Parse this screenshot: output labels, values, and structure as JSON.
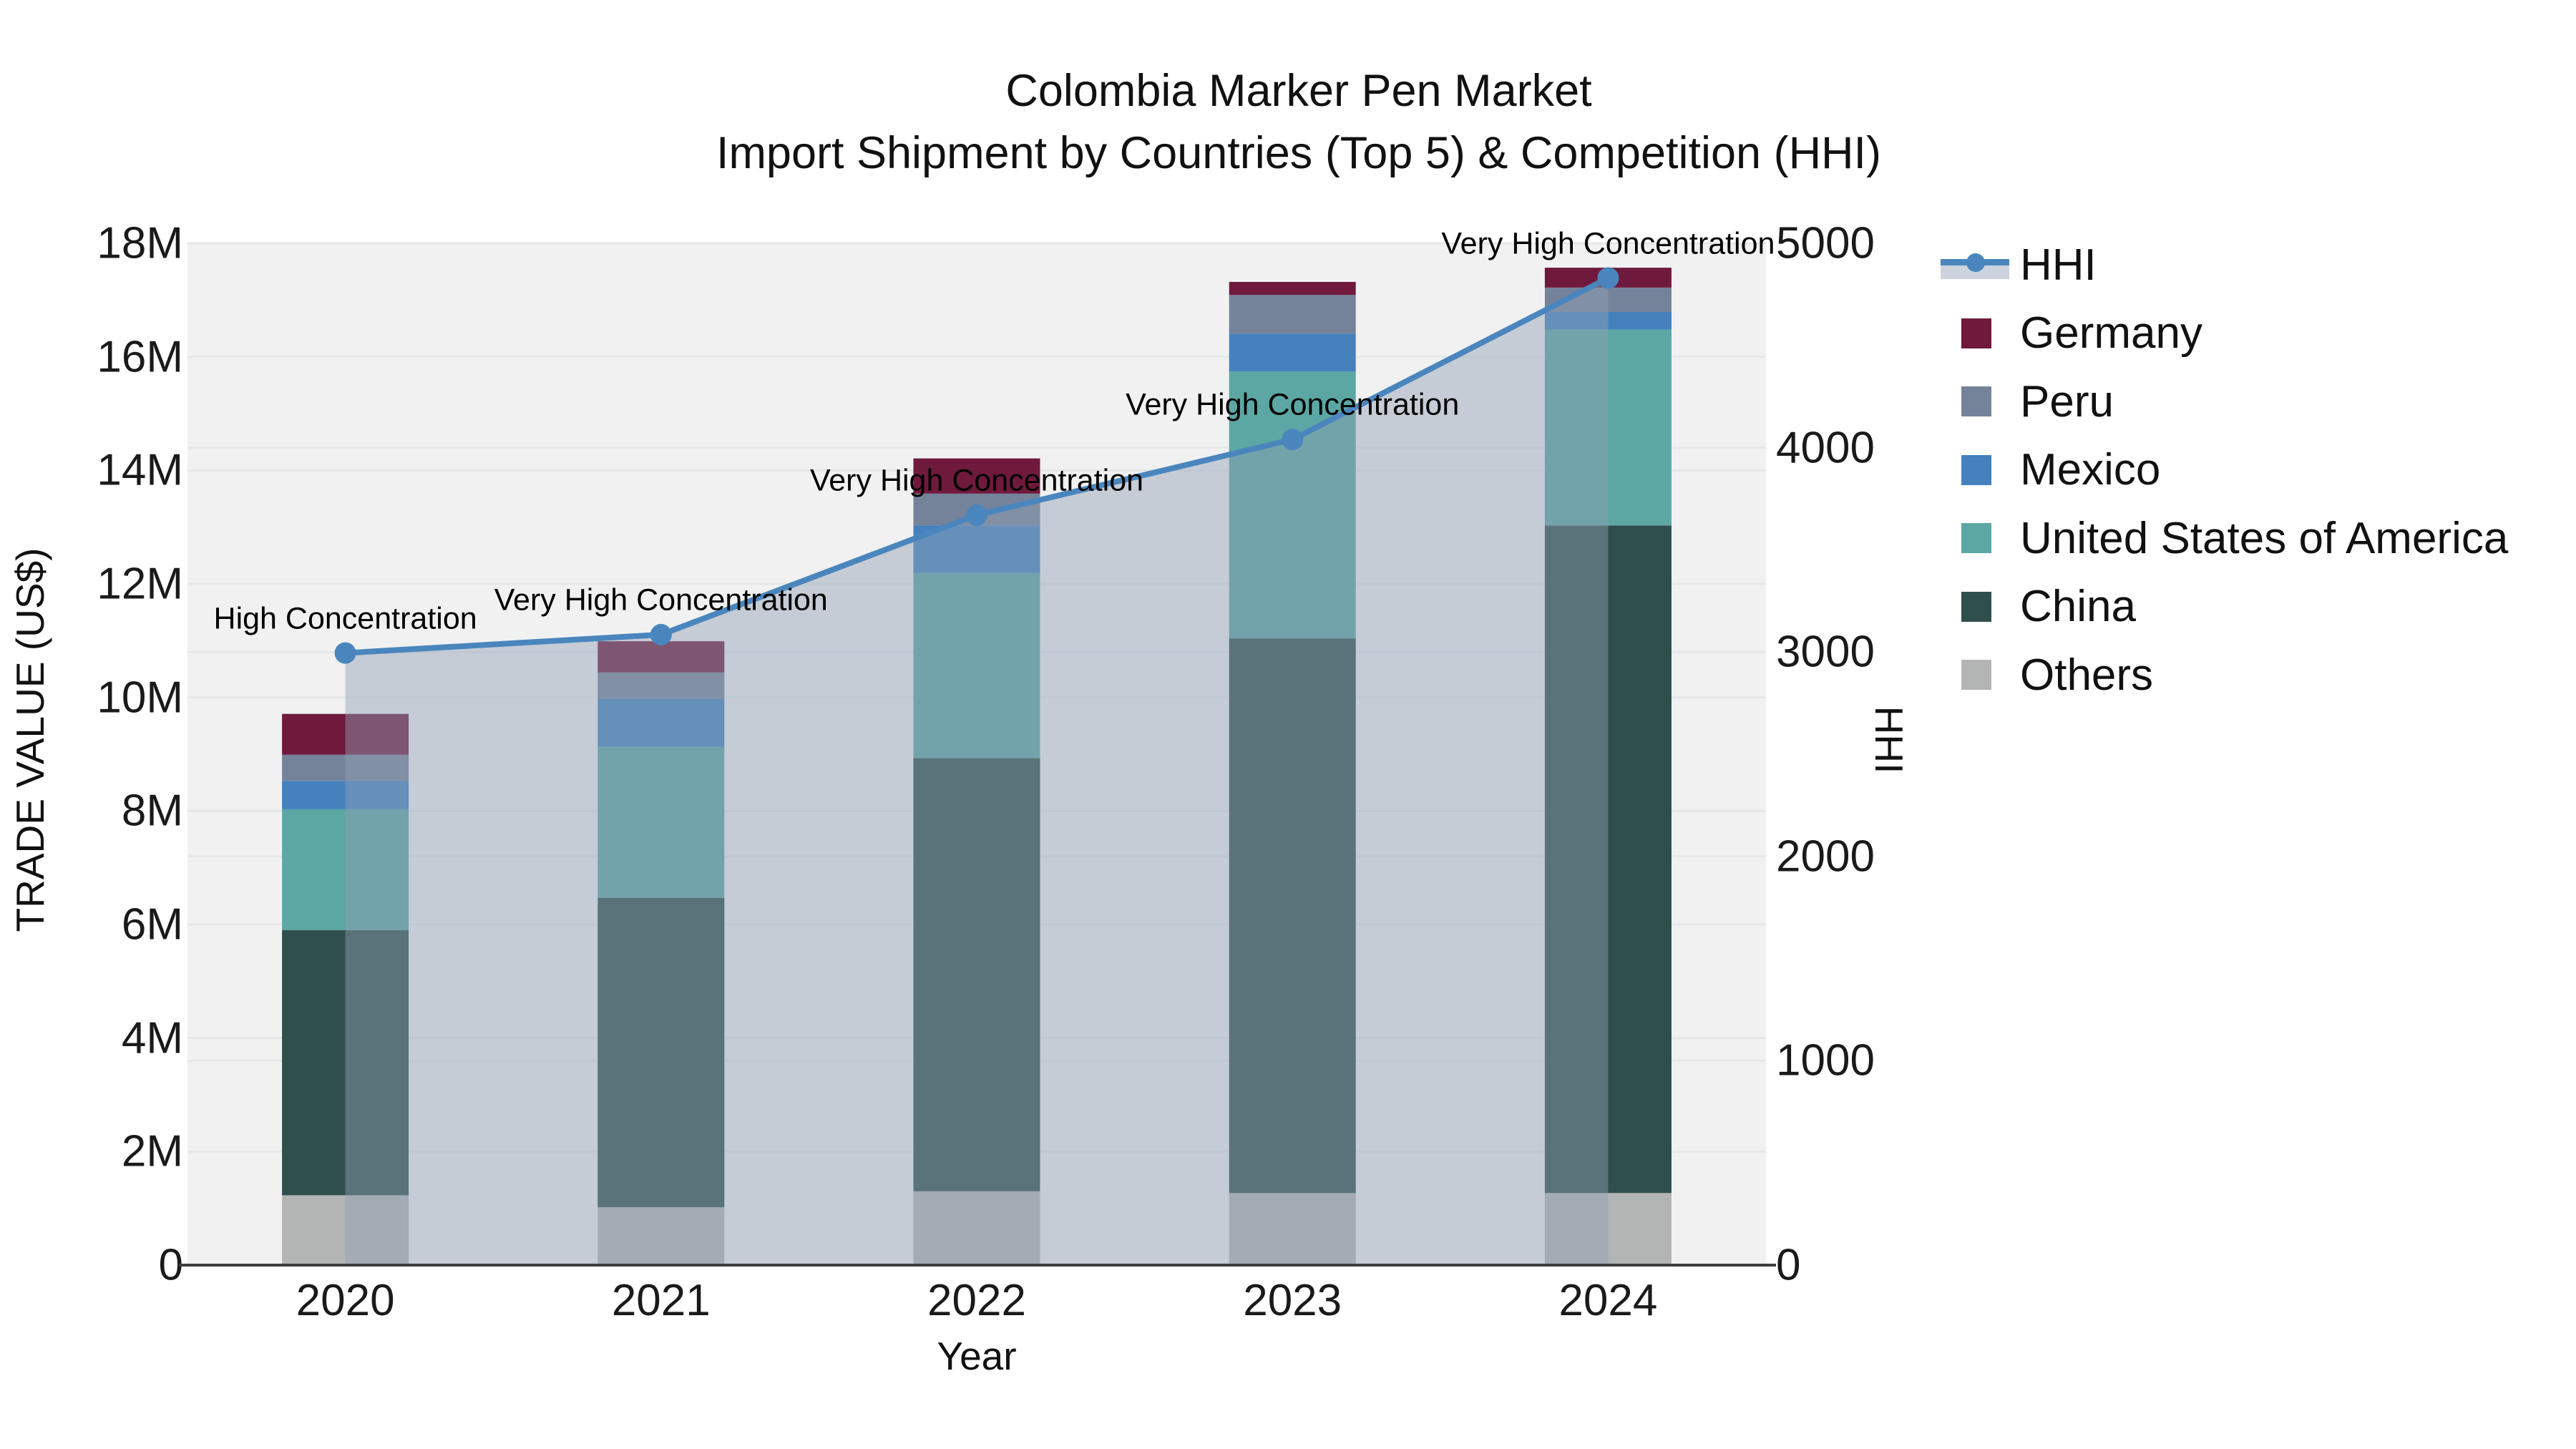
{
  "title": {
    "line1": "Colombia Marker Pen Market",
    "line2": "Import Shipment by Countries (Top 5) & Competition (HHI)"
  },
  "axes": {
    "x_title": "Year",
    "y_left_title": "TRADE VALUE (US$)",
    "y_right_title": "HHI",
    "x_ticks": [
      "2020",
      "2021",
      "2022",
      "2023",
      "2024"
    ],
    "y_left_ticks": [
      "0",
      "2M",
      "4M",
      "6M",
      "8M",
      "10M",
      "12M",
      "14M",
      "16M",
      "18M"
    ],
    "y_right_ticks": [
      "0",
      "1000",
      "2000",
      "3000",
      "4000",
      "5000"
    ]
  },
  "colors": {
    "hhi_line": "#4a86bd",
    "hhi_area": "rgba(145,159,180,0.45)",
    "germany": "#6f1a3c",
    "peru": "#75839a",
    "mexico": "#4481bd",
    "usa": "#5ca7a3",
    "china": "#2f4f4c",
    "others": "#b2b5b4",
    "plot_bg": "#f1f1f2",
    "grid": "#e6e7e9",
    "axis_line": "#3d3d3d"
  },
  "legend": [
    {
      "label": "HHI",
      "type": "line",
      "color": "#4a86bd"
    },
    {
      "label": "Germany",
      "type": "patch",
      "color": "#6f1a3c"
    },
    {
      "label": "Peru",
      "type": "patch",
      "color": "#75839a"
    },
    {
      "label": "Mexico",
      "type": "patch",
      "color": "#4481bd"
    },
    {
      "label": "United States of America",
      "type": "patch",
      "color": "#5ca7a3"
    },
    {
      "label": "China",
      "type": "patch",
      "color": "#2f4f4c"
    },
    {
      "label": "Others",
      "type": "patch",
      "color": "#b2b5b4"
    }
  ],
  "chart_data": [
    {
      "type": "bar",
      "stacked": true,
      "title": "Import shipment trade value by country (stacked, bottom to top)",
      "categories": [
        "2020",
        "2021",
        "2022",
        "2023",
        "2024"
      ],
      "xlabel": "Year",
      "ylabel": "TRADE VALUE (US$)",
      "ylim": [
        0,
        18000000
      ],
      "grid": true,
      "series": [
        {
          "name": "Others",
          "color": "#b2b5b4",
          "values": [
            1230000,
            1020000,
            1300000,
            1270000,
            1270000
          ]
        },
        {
          "name": "China",
          "color": "#2f4f4c",
          "values": [
            4670000,
            5450000,
            7630000,
            9770000,
            11760000
          ]
        },
        {
          "name": "United States of America",
          "color": "#5ca7a3",
          "values": [
            2130000,
            2660000,
            3260000,
            4700000,
            3450000
          ]
        },
        {
          "name": "Mexico",
          "color": "#4481bd",
          "values": [
            500000,
            850000,
            840000,
            670000,
            310000
          ]
        },
        {
          "name": "Peru",
          "color": "#75839a",
          "values": [
            460000,
            460000,
            560000,
            680000,
            430000
          ]
        },
        {
          "name": "Germany",
          "color": "#6f1a3c",
          "values": [
            720000,
            550000,
            620000,
            230000,
            350000
          ]
        }
      ],
      "totals": [
        9710000,
        10990000,
        14210000,
        17320000,
        17570000
      ]
    },
    {
      "type": "line",
      "name": "HHI",
      "axis": "right",
      "x": [
        "2020",
        "2021",
        "2022",
        "2023",
        "2024"
      ],
      "values": [
        2995,
        3085,
        3670,
        4040,
        4830
      ],
      "ylabel": "HHI",
      "ylim": [
        0,
        5000
      ],
      "area_fill": true,
      "legend_position": "right",
      "annotations": [
        "High Concentration",
        "Very High Concentration",
        "Very High Concentration",
        "Very High Concentration",
        "Very High Concentration"
      ]
    }
  ]
}
